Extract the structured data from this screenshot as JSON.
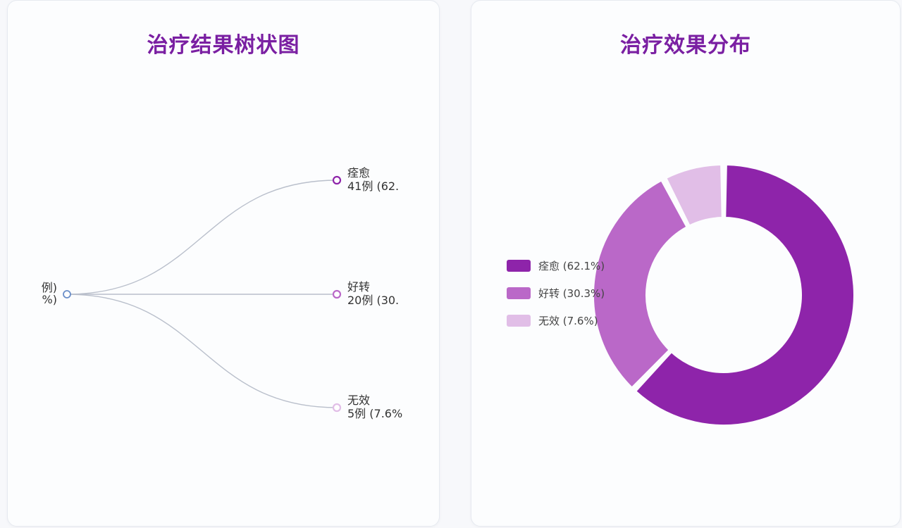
{
  "tree_panel": {
    "title": "治疗结果树状图",
    "root": {
      "line1": "例)",
      "line2": "%)"
    }
  },
  "donut_panel": {
    "title": "治疗效果分布"
  },
  "colors": {
    "title": "#7a1fa2",
    "cured": "#8e24aa",
    "improved": "#ba68c8",
    "ineffective": "#e1bee7",
    "root_node": "#6b8fc9",
    "link": "#b9bfcb"
  },
  "chart_data": [
    {
      "type": "tree",
      "title": "治疗结果树状图",
      "root": {
        "label_lines": [
          "例)",
          "%)"
        ]
      },
      "children": [
        {
          "name": "痊愈",
          "detail": "41例 (62.",
          "count": 41,
          "percent": 62.1
        },
        {
          "name": "好转",
          "detail": "20例 (30.",
          "count": 20,
          "percent": 30.3
        },
        {
          "name": "无效",
          "detail": "5例 (7.6%",
          "count": 5,
          "percent": 7.6
        }
      ]
    },
    {
      "type": "pie",
      "title": "治疗效果分布",
      "legend_position": "left",
      "slices": [
        {
          "name": "痊愈",
          "legend": "痊愈 (62.1%)",
          "value": 62.1,
          "color": "#8e24aa"
        },
        {
          "name": "好转",
          "legend": "好转 (30.3%)",
          "value": 30.3,
          "color": "#ba68c8"
        },
        {
          "name": "无效",
          "legend": "无效 (7.6%)",
          "value": 7.6,
          "color": "#e1bee7"
        }
      ]
    }
  ]
}
